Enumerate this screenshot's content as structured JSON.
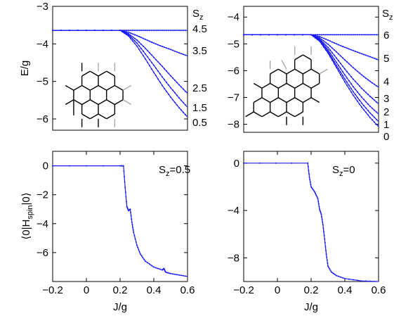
{
  "chart_data": [
    {
      "type": "line",
      "panel": "top-left",
      "ylabel": "E/g",
      "xlim": [
        -0.2,
        0.6
      ],
      "ylim": [
        -6.3,
        -3
      ],
      "yticks": [
        -3,
        -4,
        -5,
        -6
      ],
      "ytick_labels": [
        "−3",
        "−4",
        "−5",
        "−6"
      ],
      "right_title": "S",
      "right_title_sub": "z",
      "right_labels": [
        "4.5",
        "3.5",
        "2.5",
        "1.5",
        "0.5"
      ],
      "x": [
        -0.2,
        0.0,
        0.2,
        0.25,
        0.3,
        0.35,
        0.4,
        0.45,
        0.5,
        0.55,
        0.6
      ],
      "series": [
        {
          "values": [
            -3.64,
            -3.64,
            -3.64,
            -3.64,
            -3.64,
            -3.64,
            -3.64,
            -3.64,
            -3.64,
            -3.64,
            -3.64
          ]
        },
        {
          "values": [
            -3.64,
            -3.64,
            -3.64,
            -3.69,
            -3.78,
            -3.88,
            -3.98,
            -4.07,
            -4.15,
            -4.24,
            -4.32
          ]
        },
        {
          "values": [
            -3.64,
            -3.64,
            -3.64,
            -3.73,
            -3.9,
            -4.12,
            -4.36,
            -4.6,
            -4.85,
            -5.09,
            -5.32
          ]
        },
        {
          "values": [
            -3.64,
            -3.64,
            -3.64,
            -3.76,
            -3.98,
            -4.27,
            -4.57,
            -4.88,
            -5.17,
            -5.44,
            -5.69
          ]
        },
        {
          "values": [
            -3.64,
            -3.64,
            -3.64,
            -3.79,
            -4.06,
            -4.4,
            -4.76,
            -5.11,
            -5.42,
            -5.7,
            -5.95
          ]
        }
      ]
    },
    {
      "type": "line",
      "panel": "top-right",
      "xlim": [
        -0.2,
        0.6
      ],
      "ylim": [
        -8.3,
        -3.6
      ],
      "yticks": [
        -4,
        -5,
        -6,
        -7,
        -8
      ],
      "ytick_labels": [
        "−4",
        "−5",
        "−6",
        "−7",
        "−8"
      ],
      "right_title": "S",
      "right_title_sub": "z",
      "right_labels": [
        "6",
        "5",
        "4",
        "3",
        "2",
        "1",
        "0"
      ],
      "x": [
        -0.2,
        0.0,
        0.2,
        0.25,
        0.3,
        0.35,
        0.4,
        0.45,
        0.5,
        0.55,
        0.6
      ],
      "series": [
        {
          "values": [
            -4.66,
            -4.66,
            -4.66,
            -4.66,
            -4.66,
            -4.66,
            -4.66,
            -4.66,
            -4.66,
            -4.66,
            -4.66
          ]
        },
        {
          "values": [
            -4.66,
            -4.66,
            -4.66,
            -4.73,
            -4.86,
            -5.0,
            -5.13,
            -5.25,
            -5.37,
            -5.48,
            -5.6
          ]
        },
        {
          "values": [
            -4.66,
            -4.66,
            -4.66,
            -4.78,
            -5.01,
            -5.3,
            -5.6,
            -5.89,
            -6.16,
            -6.4,
            -6.62
          ]
        },
        {
          "values": [
            -4.66,
            -4.66,
            -4.66,
            -4.82,
            -5.13,
            -5.53,
            -5.94,
            -6.32,
            -6.66,
            -6.96,
            -7.24
          ]
        },
        {
          "values": [
            -4.66,
            -4.66,
            -4.66,
            -4.85,
            -5.22,
            -5.69,
            -6.16,
            -6.6,
            -6.99,
            -7.33,
            -7.62
          ]
        },
        {
          "values": [
            -4.66,
            -4.66,
            -4.66,
            -4.88,
            -5.29,
            -5.8,
            -6.31,
            -6.79,
            -7.21,
            -7.58,
            -7.9
          ]
        },
        {
          "values": [
            -4.66,
            -4.66,
            -4.66,
            -4.9,
            -5.34,
            -5.88,
            -6.42,
            -6.92,
            -7.36,
            -7.75,
            -8.09
          ]
        }
      ]
    },
    {
      "type": "line",
      "panel": "bottom-left",
      "xlabel": "J/g",
      "ylabel": "⟨0|H",
      "ylabel_sub": "spin",
      "ylabel_tail": "|0⟩",
      "xlim": [
        -0.2,
        0.6
      ],
      "ylim": [
        -8,
        1
      ],
      "xticks": [
        -0.2,
        0,
        0.2,
        0.4,
        0.6
      ],
      "xtick_labels": [
        "−0.2",
        "0",
        "0.2",
        "0.4",
        "0.6"
      ],
      "yticks": [
        0,
        -2,
        -4,
        -6
      ],
      "ytick_labels": [
        "0",
        "−2",
        "−4",
        "−6"
      ],
      "annotation": "S",
      "annotation_sub": "z",
      "annotation_tail": "=0.5",
      "x": [
        -0.2,
        0.2,
        0.22,
        0.23,
        0.24,
        0.25,
        0.26,
        0.27,
        0.28,
        0.3,
        0.32,
        0.35,
        0.4,
        0.45,
        0.46,
        0.47,
        0.5,
        0.55,
        0.6
      ],
      "values": [
        0,
        0,
        0,
        -1.5,
        -2.8,
        -3.1,
        -3.0,
        -3.9,
        -4.6,
        -5.5,
        -6.1,
        -6.6,
        -7.0,
        -7.2,
        -7.1,
        -7.35,
        -7.45,
        -7.55,
        -7.65
      ]
    },
    {
      "type": "line",
      "panel": "bottom-right",
      "xlabel": "J/g",
      "xlim": [
        -0.2,
        0.6
      ],
      "ylim": [
        -10,
        1
      ],
      "xticks": [
        -0.2,
        0,
        0.2,
        0.4,
        0.6
      ],
      "xtick_labels": [
        "−0.2",
        "0",
        "0.2",
        "0.4",
        "0.6"
      ],
      "yticks": [
        0,
        -4,
        -8
      ],
      "ytick_labels": [
        "0",
        "−4",
        "−8"
      ],
      "annotation": "S",
      "annotation_sub": "z",
      "annotation_tail": "=0",
      "x": [
        -0.2,
        0.18,
        0.19,
        0.2,
        0.22,
        0.24,
        0.25,
        0.26,
        0.27,
        0.28,
        0.29,
        0.3,
        0.32,
        0.35,
        0.4,
        0.5,
        0.6
      ],
      "values": [
        0,
        0,
        -1.2,
        -2.0,
        -2.4,
        -3.0,
        -3.9,
        -4.3,
        -5.2,
        -6.4,
        -7.7,
        -8.7,
        -9.2,
        -9.5,
        -9.75,
        -9.95,
        -10.0
      ]
    }
  ]
}
